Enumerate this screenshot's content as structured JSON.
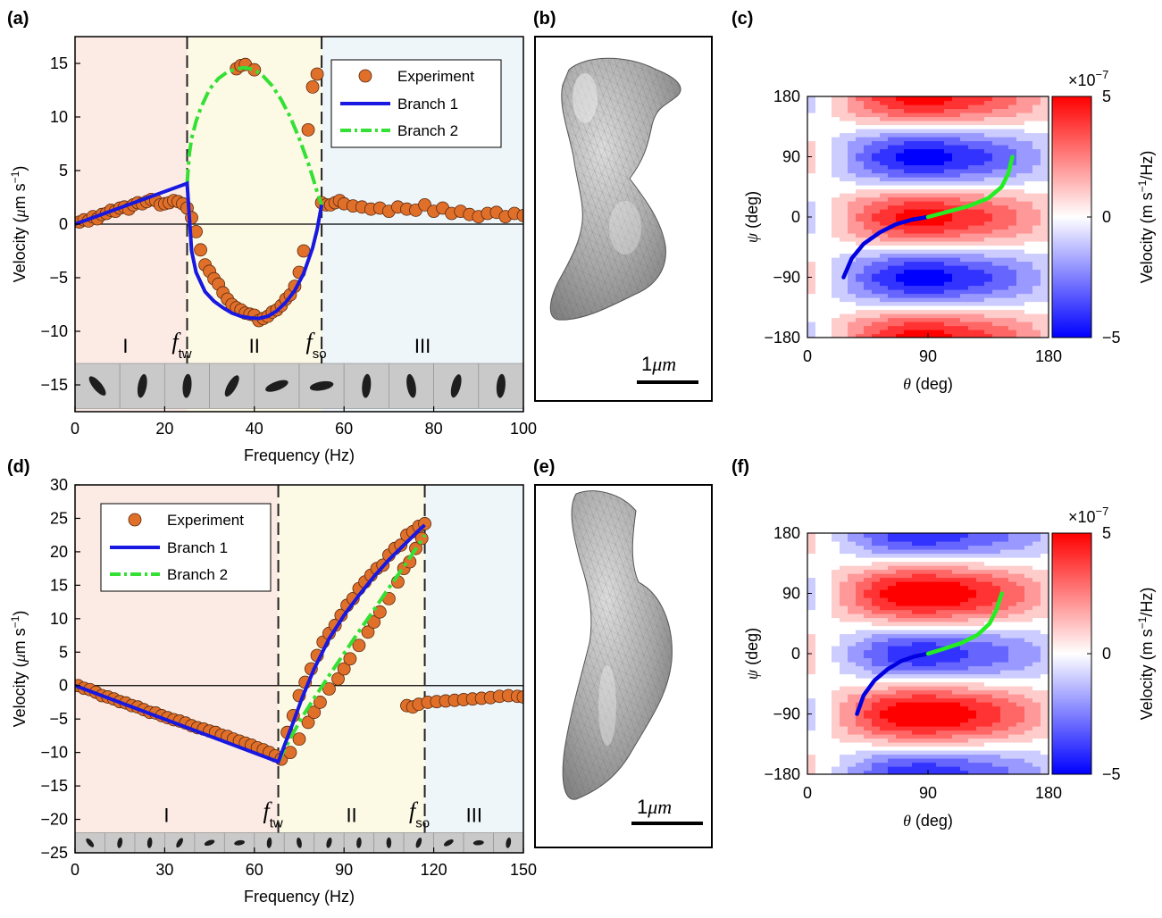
{
  "chart_data": [
    {
      "panel": "(a)",
      "type": "scatter",
      "xlabel_parts": [
        "Frequency (Hz)"
      ],
      "ylabel_parts": [
        "Velocity (",
        "μ",
        "m s",
        "−1",
        ")"
      ],
      "xlim": [
        0,
        100
      ],
      "ylim": [
        -17.5,
        17.5
      ],
      "xticks": [
        0,
        20,
        40,
        60,
        80,
        100
      ],
      "yticks": [
        -15,
        -10,
        -5,
        0,
        5,
        10,
        15
      ],
      "regions": [
        {
          "from": 0,
          "to": 25,
          "color": "#fcebe4",
          "label": "I"
        },
        {
          "from": 25,
          "to": 55,
          "color": "#fcf9e5",
          "label": "II"
        },
        {
          "from": 55,
          "to": 100,
          "color": "#eef6fa",
          "label": "III"
        }
      ],
      "markers": [
        {
          "x": 25,
          "name": "f",
          "sub": "tw"
        },
        {
          "x": 55,
          "name": "f",
          "sub": "so"
        }
      ],
      "legend": {
        "position": "top-right",
        "entries": [
          "Experiment",
          "Branch 1",
          "Branch 2"
        ]
      },
      "colors": {
        "experiment": "#e06f2a",
        "branch1": "#1818e0",
        "branch2": "#33e033"
      },
      "image_strip": {
        "y_range": [
          -13,
          -17.2
        ],
        "count": 10
      },
      "series": [
        {
          "name": "Experiment",
          "x": [
            1,
            2,
            3,
            4,
            5,
            6,
            7,
            8,
            9,
            10,
            11,
            12,
            13,
            14,
            15,
            16,
            17,
            18,
            19,
            20,
            21,
            22,
            23,
            24,
            25,
            26,
            27,
            28,
            29,
            30,
            31,
            32,
            33,
            34,
            35,
            36,
            37,
            38,
            39,
            40,
            41,
            42,
            43,
            44,
            45,
            46,
            47,
            48,
            49,
            50,
            51,
            52,
            53,
            54,
            55,
            56,
            57,
            58,
            59,
            60,
            62,
            64,
            66,
            68,
            70,
            72,
            74,
            76,
            78,
            80,
            82,
            84,
            86,
            88,
            90,
            92,
            94,
            96,
            98,
            100,
            36,
            37,
            38,
            40
          ],
          "y": [
            0.2,
            0.4,
            0.3,
            0.7,
            0.5,
            0.9,
            1.0,
            1.3,
            1.2,
            1.5,
            1.6,
            1.4,
            1.8,
            2.0,
            1.9,
            2.1,
            2.3,
            2.2,
            1.8,
            1.9,
            2.0,
            2.2,
            2.1,
            1.9,
            1.5,
            0.6,
            -0.7,
            -2.4,
            -3.8,
            -4.4,
            -5.1,
            -5.6,
            -6.4,
            -7.0,
            -7.5,
            -7.8,
            -8.0,
            -8.3,
            -8.4,
            -8.5,
            -9.0,
            -8.8,
            -8.6,
            -8.2,
            -8.0,
            -7.6,
            -7.0,
            -6.6,
            -5.8,
            -4.5,
            -2.5,
            8.8,
            12.8,
            14.0,
            2.0,
            1.8,
            1.8,
            2.0,
            2.2,
            1.9,
            1.7,
            1.6,
            1.4,
            1.5,
            1.2,
            1.6,
            1.4,
            1.3,
            1.8,
            1.2,
            1.5,
            1.0,
            1.2,
            0.9,
            0.7,
            1.0,
            1.1,
            0.7,
            1.0,
            0.8,
            14.5,
            14.8,
            14.9,
            14.4
          ]
        },
        {
          "name": "Branch 1",
          "x": [
            0,
            25,
            25,
            26,
            27,
            29,
            31,
            33,
            35,
            37,
            39,
            41,
            43,
            45,
            47,
            49,
            51,
            53,
            54,
            55
          ],
          "y": [
            0,
            3.8,
            3.8,
            -2.5,
            -4.5,
            -6.3,
            -7.2,
            -7.8,
            -8.3,
            -8.6,
            -8.75,
            -8.8,
            -8.6,
            -8.1,
            -7.3,
            -6.2,
            -4.6,
            -2.2,
            -0.5,
            1.8
          ]
        },
        {
          "name": "Branch 2",
          "x": [
            25,
            25.5,
            26,
            27,
            28,
            30,
            32,
            34,
            36,
            38,
            40,
            42,
            44,
            46,
            48,
            50,
            52,
            53,
            54,
            55
          ],
          "y": [
            3.8,
            6.6,
            8.0,
            9.6,
            10.8,
            12.6,
            13.6,
            14.2,
            14.5,
            14.6,
            14.4,
            13.8,
            12.9,
            11.6,
            10.0,
            8.0,
            5.7,
            4.4,
            3.0,
            1.8
          ]
        }
      ]
    },
    {
      "panel": "(c)",
      "type": "heatmap",
      "xlabel_parts": [
        "θ",
        " (deg)"
      ],
      "ylabel_parts": [
        "ψ",
        " (deg)"
      ],
      "xlim": [
        0,
        180
      ],
      "ylim": [
        -180,
        180
      ],
      "xticks": [
        0,
        90,
        180
      ],
      "yticks": [
        -180,
        -90,
        0,
        90,
        180
      ],
      "colorbar": {
        "min": -5,
        "max": 5,
        "ticks": [
          -5,
          0,
          5
        ],
        "exponent_prefix": "×10",
        "exponent": "−7",
        "label_parts": [
          "Velocity (m s",
          "−1",
          "/Hz)"
        ],
        "colors": [
          "#0000ff",
          "#ffffff",
          "#ff0000"
        ]
      },
      "field": {
        "amplitude": 5,
        "x_shift": 12,
        "y_shift": 0,
        "y_offset": 0
      },
      "branch1": {
        "x": [
          27,
          33,
          42,
          54,
          66,
          78,
          90
        ],
        "y": [
          -90,
          -62,
          -40,
          -23,
          -11,
          -4,
          0
        ]
      },
      "branch2": {
        "x": [
          90,
          105,
          120,
          135,
          145,
          150,
          153
        ],
        "y": [
          0,
          8,
          16,
          28,
          45,
          65,
          90
        ]
      }
    },
    {
      "panel": "(d)",
      "type": "scatter",
      "xlabel_parts": [
        "Frequency (Hz)"
      ],
      "ylabel_parts": [
        "Velocity (",
        "μ",
        "m s",
        "−1",
        ")"
      ],
      "xlim": [
        0,
        150
      ],
      "ylim": [
        -25,
        30
      ],
      "xticks": [
        0,
        30,
        60,
        90,
        120,
        150
      ],
      "yticks": [
        -25,
        -20,
        -15,
        -10,
        -5,
        0,
        5,
        10,
        15,
        20,
        25,
        30
      ],
      "regions": [
        {
          "from": 0,
          "to": 68,
          "color": "#fcebe4",
          "label": "I"
        },
        {
          "from": 68,
          "to": 117,
          "color": "#fcf9e5",
          "label": "II"
        },
        {
          "from": 117,
          "to": 150,
          "color": "#eef6fa",
          "label": "III"
        }
      ],
      "markers": [
        {
          "x": 68,
          "name": "f",
          "sub": "tw"
        },
        {
          "x": 117,
          "name": "f",
          "sub": "so"
        }
      ],
      "legend": {
        "position": "top-left",
        "entries": [
          "Experiment",
          "Branch 1",
          "Branch 2"
        ]
      },
      "colors": {
        "experiment": "#e06f2a",
        "branch1": "#1818e0",
        "branch2": "#33e033"
      },
      "image_strip": {
        "y_range": [
          -22,
          -25
        ],
        "count": 15
      },
      "series": [
        {
          "name": "Experiment",
          "x": [
            1,
            3,
            5,
            7,
            9,
            11,
            13,
            15,
            17,
            19,
            21,
            23,
            25,
            27,
            29,
            31,
            33,
            35,
            37,
            39,
            41,
            43,
            45,
            47,
            49,
            51,
            53,
            55,
            57,
            59,
            61,
            63,
            65,
            67,
            69,
            71,
            73,
            75,
            77,
            79,
            81,
            83,
            85,
            87,
            89,
            91,
            93,
            95,
            97,
            99,
            101,
            103,
            105,
            107,
            109,
            111,
            113,
            115,
            117,
            72,
            75,
            78,
            80,
            82,
            85,
            88,
            90,
            92,
            95,
            98,
            100,
            102,
            105,
            108,
            110,
            112,
            114,
            116,
            111,
            113,
            115,
            118,
            121,
            124,
            127,
            130,
            133,
            136,
            139,
            142,
            145,
            148,
            150
          ],
          "y": [
            0,
            -0.4,
            -0.6,
            -1.0,
            -1.5,
            -1.7,
            -2.0,
            -2.4,
            -2.6,
            -3.0,
            -3.2,
            -3.6,
            -4.0,
            -4.1,
            -4.5,
            -4.8,
            -5.1,
            -5.3,
            -5.6,
            -6.0,
            -6.3,
            -6.5,
            -6.8,
            -7.0,
            -7.4,
            -7.6,
            -8.0,
            -8.3,
            -8.6,
            -8.9,
            -9.3,
            -9.6,
            -10.0,
            -10.5,
            -11.0,
            -7.0,
            -4.5,
            -1.5,
            0.5,
            2.5,
            4.5,
            6.5,
            7.8,
            9.0,
            10.5,
            12.0,
            13.0,
            14.5,
            15.5,
            16.5,
            17.5,
            18.0,
            19.5,
            20.5,
            21.0,
            22.5,
            23.0,
            23.8,
            24.2,
            -10.0,
            -8.0,
            -5.5,
            -4.0,
            -2.5,
            -0.5,
            1.0,
            2.5,
            4.0,
            6.0,
            8.0,
            9.5,
            11.0,
            13.0,
            15.5,
            17.5,
            18.5,
            20.5,
            22.0,
            -3.0,
            -3.2,
            -2.8,
            -2.5,
            -2.4,
            -2.3,
            -2.2,
            -2.1,
            -2.0,
            -1.9,
            -1.8,
            -1.6,
            -1.5,
            -1.6,
            -1.7
          ]
        },
        {
          "name": "Branch 1",
          "x": [
            0,
            68,
            70,
            73,
            76,
            80,
            85,
            90,
            95,
            100,
            105,
            110,
            115,
            117
          ],
          "y": [
            0,
            -11.4,
            -9.0,
            -5.5,
            -1.8,
            2.5,
            7.0,
            10.5,
            13.5,
            16.3,
            18.8,
            21.0,
            23.2,
            24.0
          ]
        },
        {
          "name": "Branch 2",
          "x": [
            68,
            72,
            76,
            80,
            85,
            90,
            95,
            100,
            105,
            110,
            115,
            117
          ],
          "y": [
            -11.4,
            -7.9,
            -4.7,
            -1.9,
            1.5,
            4.8,
            8.1,
            11.3,
            14.6,
            17.8,
            21.1,
            22.5
          ]
        }
      ]
    },
    {
      "panel": "(f)",
      "type": "heatmap",
      "xlabel_parts": [
        "θ",
        " (deg)"
      ],
      "ylabel_parts": [
        "ψ",
        " (deg)"
      ],
      "xlim": [
        0,
        180
      ],
      "ylim": [
        -180,
        180
      ],
      "xticks": [
        0,
        90,
        180
      ],
      "yticks": [
        -180,
        -90,
        0,
        90,
        180
      ],
      "colorbar": {
        "min": -5,
        "max": 5,
        "ticks": [
          -5,
          0,
          5
        ],
        "exponent_prefix": "×10",
        "exponent": "−7",
        "label_parts": [
          "Velocity (m s",
          "−1",
          "/Hz)"
        ],
        "colors": [
          "#0000ff",
          "#ffffff",
          "#ff0000"
        ]
      },
      "field": {
        "amplitude": 5,
        "x_shift": 12,
        "y_shift": -90,
        "y_offset": 0.35
      },
      "branch1": {
        "x": [
          37,
          42,
          50,
          60,
          70,
          80,
          90
        ],
        "y": [
          -90,
          -62,
          -40,
          -23,
          -11,
          -4,
          0
        ]
      },
      "branch2": {
        "x": [
          90,
          103,
          115,
          127,
          136,
          141,
          145
        ],
        "y": [
          0,
          8,
          16,
          28,
          45,
          65,
          90
        ]
      }
    }
  ],
  "panels": {
    "a": "(a)",
    "b": "(b)",
    "c": "(c)",
    "d": "(d)",
    "e": "(e)",
    "f": "(f)",
    "scale_bar_number": "1",
    "scale_bar_mu": "μ",
    "scale_bar_unit": "m"
  }
}
